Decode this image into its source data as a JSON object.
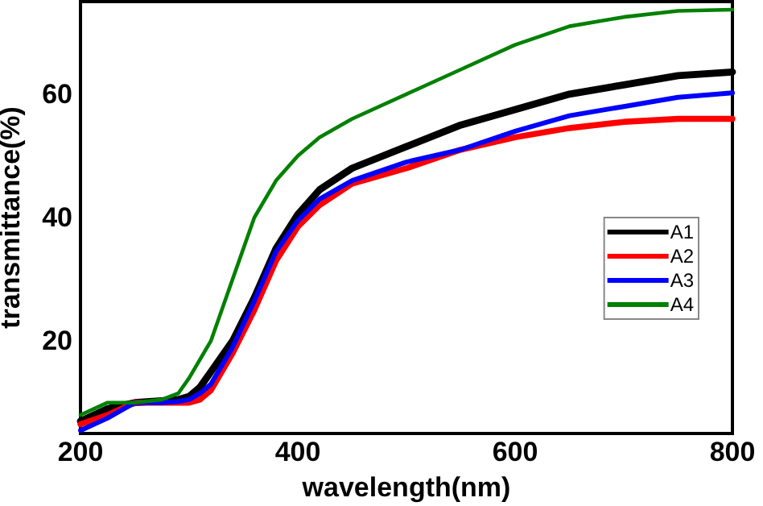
{
  "chart_data": {
    "type": "line",
    "xlabel": "wavelength(nm)",
    "ylabel": "transmittance(%)",
    "xlim": [
      200,
      800
    ],
    "xticks": [
      200,
      400,
      600,
      800
    ],
    "ylim": [
      5,
      75
    ],
    "yticks": [
      20,
      40,
      60
    ],
    "grid": false,
    "legend": "right",
    "marker": "none",
    "line_style": "solid",
    "x": [
      200,
      225,
      250,
      275,
      290,
      300,
      310,
      320,
      340,
      360,
      380,
      400,
      420,
      450,
      500,
      550,
      600,
      650,
      700,
      750,
      800
    ],
    "series": [
      {
        "name": "A1",
        "color": "#000000",
        "values": [
          7,
          9,
          10,
          10.3,
          10.5,
          11,
          12.5,
          15,
          20,
          27,
          35,
          40.5,
          44.5,
          48,
          51.5,
          55,
          57.5,
          60,
          61.5,
          63,
          63.6
        ]
      },
      {
        "name": "A2",
        "color": "#ff0000",
        "values": [
          6.5,
          8,
          10,
          10,
          10,
          10,
          10.5,
          12,
          18,
          25,
          33,
          38.5,
          42,
          45.5,
          48,
          51,
          53,
          54.5,
          55.5,
          56,
          56
        ]
      },
      {
        "name": "A3",
        "color": "#0000ff",
        "values": [
          5.5,
          7.5,
          10,
          10,
          10.2,
          10.5,
          11.5,
          13,
          19,
          26.5,
          34.5,
          39.5,
          43,
          46,
          49,
          51,
          54,
          56.5,
          58,
          59.5,
          60.2
        ]
      },
      {
        "name": "A4",
        "color": "#008000",
        "values": [
          8,
          10,
          10,
          10.5,
          11.5,
          14,
          17,
          20,
          30,
          40,
          46,
          50,
          53,
          56,
          60,
          64,
          68,
          71,
          72.5,
          73.5,
          73.7
        ]
      }
    ]
  }
}
